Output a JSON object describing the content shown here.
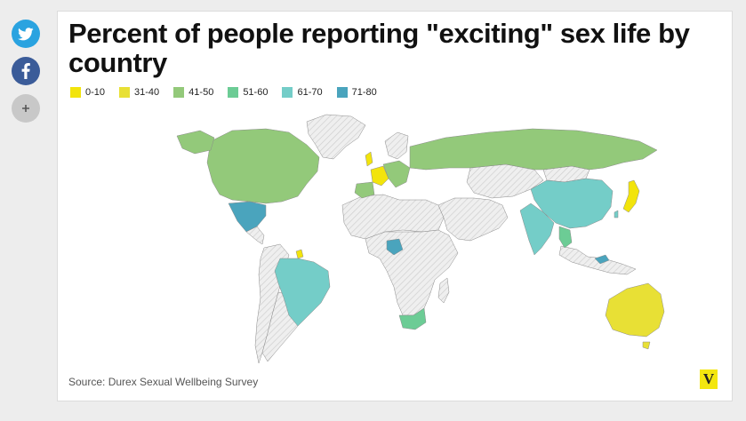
{
  "title": "Percent of people reporting \"exciting\" sex life by country",
  "share": [
    {
      "icon": "twitter-icon",
      "color": "#2aa3e0"
    },
    {
      "icon": "facebook-icon",
      "color": "#3b5c99"
    },
    {
      "icon": "plus-icon",
      "color": "#c8c8c8"
    }
  ],
  "legend": [
    {
      "label": "0-10",
      "color": "#f2e40c"
    },
    {
      "label": "31-40",
      "color": "#e8e035"
    },
    {
      "label": "41-50",
      "color": "#93c97a"
    },
    {
      "label": "51-60",
      "color": "#6ccc95"
    },
    {
      "label": "61-70",
      "color": "#74cdc8"
    },
    {
      "label": "71-80",
      "color": "#4aa4bd"
    }
  ],
  "no_data_color": "#ececec",
  "source": "Source: Durex Sexual Wellbeing Survey",
  "logo": "V"
}
